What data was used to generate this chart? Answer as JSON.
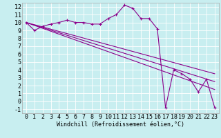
{
  "xlabel": "Windchill (Refroidissement éolien,°C)",
  "bg_color": "#c8eef0",
  "grid_color": "#ffffff",
  "line_color": "#8b008b",
  "xlim": [
    -0.5,
    23.5
  ],
  "ylim": [
    -1.5,
    12.5
  ],
  "xticks": [
    0,
    1,
    2,
    3,
    4,
    5,
    6,
    7,
    8,
    9,
    10,
    11,
    12,
    13,
    14,
    15,
    16,
    17,
    18,
    19,
    20,
    21,
    22,
    23
  ],
  "yticks": [
    -1,
    0,
    1,
    2,
    3,
    4,
    5,
    6,
    7,
    8,
    9,
    10,
    11,
    12
  ],
  "series1_x": [
    0,
    1,
    2,
    3,
    4,
    5,
    6,
    7,
    8,
    9,
    10,
    11,
    12,
    13,
    14,
    15,
    16,
    17,
    18,
    19,
    20,
    21,
    22,
    23
  ],
  "series1_y": [
    10.0,
    9.0,
    9.5,
    9.8,
    10.0,
    10.3,
    10.0,
    10.0,
    9.8,
    9.8,
    10.5,
    11.0,
    12.2,
    11.8,
    10.5,
    10.5,
    9.2,
    -0.8,
    4.0,
    3.5,
    2.8,
    1.2,
    2.8,
    -0.8
  ],
  "series2_x": [
    0,
    23
  ],
  "series2_y": [
    10.0,
    3.5
  ],
  "series3_x": [
    0,
    23
  ],
  "series3_y": [
    10.0,
    2.5
  ],
  "series4_x": [
    0,
    23
  ],
  "series4_y": [
    10.0,
    1.5
  ],
  "font_size": 6,
  "xlabel_fontsize": 6
}
